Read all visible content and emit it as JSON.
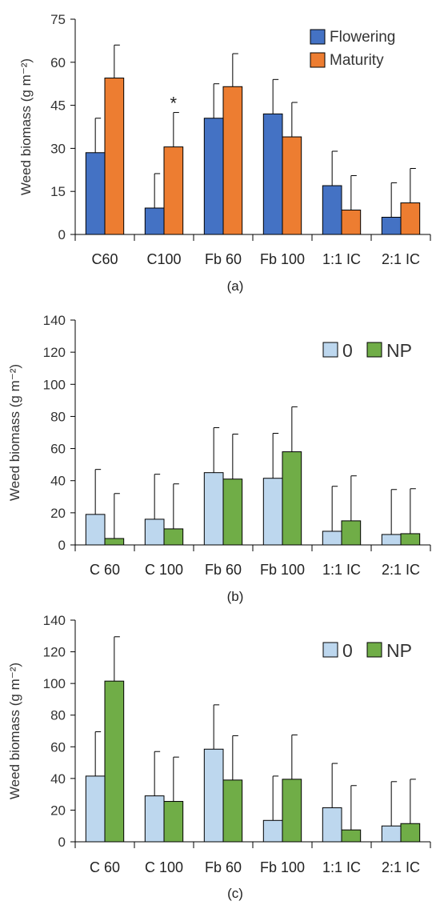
{
  "chart_data": [
    {
      "type": "bar",
      "ylabel": "Weed biomass (g m⁻²)",
      "ylim": [
        0,
        75
      ],
      "yticks": [
        0,
        15,
        30,
        45,
        60,
        75
      ],
      "categories": [
        "C60",
        "C100",
        "Fb 60",
        "Fb 100",
        "1:1 IC",
        "2:1 IC"
      ],
      "series": [
        {
          "name": "Flowering",
          "color": "#4472C4",
          "values": [
            28.5,
            9.2,
            40.5,
            42.0,
            17.0,
            6.0
          ],
          "errors": [
            12.0,
            12.0,
            12.0,
            12.0,
            12.0,
            12.0
          ]
        },
        {
          "name": "Maturity",
          "color": "#ED7D31",
          "values": [
            54.5,
            30.5,
            51.5,
            34.0,
            8.5,
            11.0
          ],
          "errors": [
            11.5,
            12.0,
            11.5,
            12.0,
            12.0,
            12.0
          ]
        }
      ],
      "annotations": [
        {
          "text": "*",
          "category": "C100",
          "series": "Maturity"
        }
      ],
      "legend_position": "top-right",
      "panel_label": "(a)"
    },
    {
      "type": "bar",
      "ylabel": "Weed biomass (g m⁻²)",
      "ylim": [
        0,
        140
      ],
      "yticks": [
        0,
        20,
        40,
        60,
        80,
        100,
        120,
        140
      ],
      "categories": [
        "C 60",
        "C 100",
        "Fb 60",
        "Fb 100",
        "1:1 IC",
        "2:1 IC"
      ],
      "series": [
        {
          "name": "0",
          "color": "#BDD7EE",
          "values": [
            19,
            16,
            45,
            41.5,
            8.5,
            6.5
          ],
          "errors": [
            28,
            28,
            28,
            28,
            28,
            28
          ]
        },
        {
          "name": "NP",
          "color": "#70AD47",
          "values": [
            4,
            10,
            41,
            58,
            15,
            7
          ],
          "errors": [
            28,
            28,
            28,
            28,
            28,
            28
          ]
        }
      ],
      "legend_position": "top-right",
      "panel_label": "(b)"
    },
    {
      "type": "bar",
      "ylabel": "Weed biomass (g m⁻²)",
      "ylim": [
        0,
        140
      ],
      "yticks": [
        0,
        20,
        40,
        60,
        80,
        100,
        120,
        140
      ],
      "categories": [
        "C 60",
        "C 100",
        "Fb 60",
        "Fb 100",
        "1:1 IC",
        "2:1 IC"
      ],
      "series": [
        {
          "name": "0",
          "color": "#BDD7EE",
          "values": [
            41.5,
            29,
            58.5,
            13.5,
            21.5,
            10
          ],
          "errors": [
            28,
            28,
            28,
            28,
            28,
            28
          ]
        },
        {
          "name": "NP",
          "color": "#70AD47",
          "values": [
            101.5,
            25.5,
            39,
            39.5,
            7.5,
            11.5
          ],
          "errors": [
            28,
            28,
            28,
            28,
            28,
            28
          ]
        }
      ],
      "legend_position": "top-right",
      "panel_label": "(c)"
    }
  ]
}
